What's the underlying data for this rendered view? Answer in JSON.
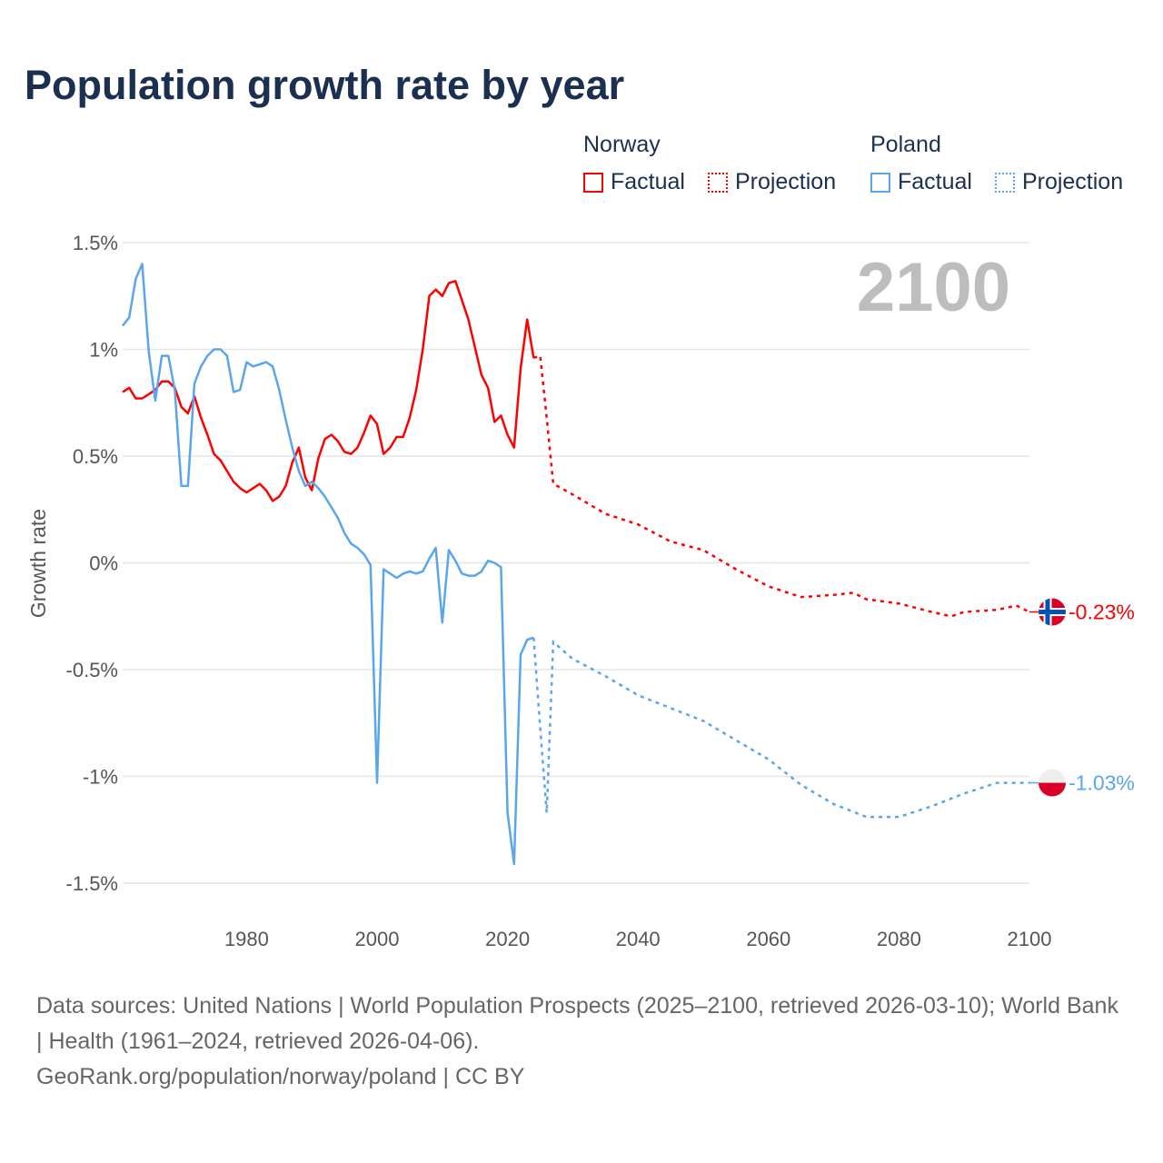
{
  "title": "Population growth rate by year",
  "legend": {
    "groups": [
      {
        "name": "Norway",
        "color": "#ff0000",
        "factual": "Factual",
        "projection": "Projection"
      },
      {
        "name": "Poland",
        "color": "#5aa5ec",
        "factual": "Factual",
        "projection": "Projection"
      }
    ]
  },
  "year_label": "2100",
  "footer": {
    "sources": "Data sources: United Nations | World Population Prospects (2025–2100, retrieved 2026-03-10); World Bank | Health (1961–2024, retrieved 2026-04-06).",
    "link": "GeoRank.org/population/norway/poland | CC BY"
  },
  "chart_data": {
    "type": "line",
    "title": "Population growth rate by year",
    "xlabel": "",
    "ylabel": "Growth rate",
    "xlim": [
      1961,
      2100
    ],
    "ylim": [
      -1.5,
      1.5
    ],
    "x_ticks": [
      1980,
      2000,
      2020,
      2040,
      2060,
      2080,
      2100
    ],
    "y_ticks": [
      1.5,
      1,
      0.5,
      0,
      -0.5,
      -1,
      -1.5
    ],
    "y_tick_labels": [
      "1.5%",
      "1%",
      "0.5%",
      "0%",
      "-0.5%",
      "-1%",
      "-1.5%"
    ],
    "grid": true,
    "legend_position": "top-right",
    "series": [
      {
        "name": "Norway",
        "color": "#ff0000",
        "flag": "norway-flag",
        "end_label": "-0.23%",
        "factual": {
          "start_year": 1961,
          "values": [
            0.8,
            0.82,
            0.77,
            0.77,
            0.79,
            0.81,
            0.85,
            0.85,
            0.82,
            0.73,
            0.7,
            0.78,
            0.68,
            0.6,
            0.51,
            0.48,
            0.43,
            0.38,
            0.35,
            0.33,
            0.35,
            0.37,
            0.34,
            0.29,
            0.31,
            0.36,
            0.47,
            0.54,
            0.4,
            0.34,
            0.49,
            0.58,
            0.6,
            0.57,
            0.52,
            0.51,
            0.54,
            0.61,
            0.69,
            0.65,
            0.51,
            0.54,
            0.59,
            0.59,
            0.68,
            0.81,
            1.0,
            1.25,
            1.28,
            1.25,
            1.31,
            1.32,
            1.23,
            1.14,
            1.01,
            0.88,
            0.82,
            0.66,
            0.69,
            0.6,
            0.54,
            0.91,
            1.14,
            0.96
          ]
        },
        "projection": {
          "x": [
            2024,
            2025,
            2026,
            2027,
            2030,
            2035,
            2040,
            2045,
            2050,
            2055,
            2060,
            2065,
            2070,
            2073,
            2075,
            2080,
            2085,
            2088,
            2090,
            2095,
            2098,
            2100
          ],
          "values": [
            0.96,
            0.97,
            0.68,
            0.37,
            0.32,
            0.23,
            0.18,
            0.1,
            0.06,
            -0.03,
            -0.11,
            -0.16,
            -0.15,
            -0.14,
            -0.17,
            -0.19,
            -0.23,
            -0.25,
            -0.23,
            -0.22,
            -0.2,
            -0.23
          ]
        }
      },
      {
        "name": "Poland",
        "color": "#5aa5ec",
        "flag": "poland-flag",
        "end_label": "-1.03%",
        "factual": {
          "start_year": 1961,
          "values": [
            1.11,
            1.15,
            1.33,
            1.4,
            0.99,
            0.76,
            0.97,
            0.97,
            0.81,
            0.36,
            0.36,
            0.84,
            0.92,
            0.97,
            1.0,
            1.0,
            0.97,
            0.8,
            0.81,
            0.94,
            0.92,
            0.93,
            0.94,
            0.92,
            0.81,
            0.67,
            0.54,
            0.43,
            0.36,
            0.38,
            0.35,
            0.31,
            0.26,
            0.21,
            0.14,
            0.09,
            0.07,
            0.04,
            -0.01,
            -1.03,
            -0.03,
            -0.05,
            -0.07,
            -0.05,
            -0.04,
            -0.05,
            -0.04,
            0.02,
            0.07,
            -0.28,
            0.06,
            0.01,
            -0.05,
            -0.06,
            -0.06,
            -0.04,
            0.01,
            0.0,
            -0.02,
            -1.17,
            -1.41,
            -0.43,
            -0.36,
            -0.35
          ]
        },
        "projection": {
          "x": [
            2024,
            2025,
            2026,
            2027,
            2030,
            2035,
            2040,
            2045,
            2050,
            2055,
            2060,
            2065,
            2070,
            2075,
            2080,
            2085,
            2090,
            2095,
            2100
          ],
          "values": [
            -0.35,
            -0.77,
            -1.17,
            -0.37,
            -0.45,
            -0.53,
            -0.62,
            -0.68,
            -0.74,
            -0.83,
            -0.92,
            -1.04,
            -1.13,
            -1.19,
            -1.19,
            -1.14,
            -1.08,
            -1.03,
            -1.03
          ]
        }
      }
    ]
  }
}
